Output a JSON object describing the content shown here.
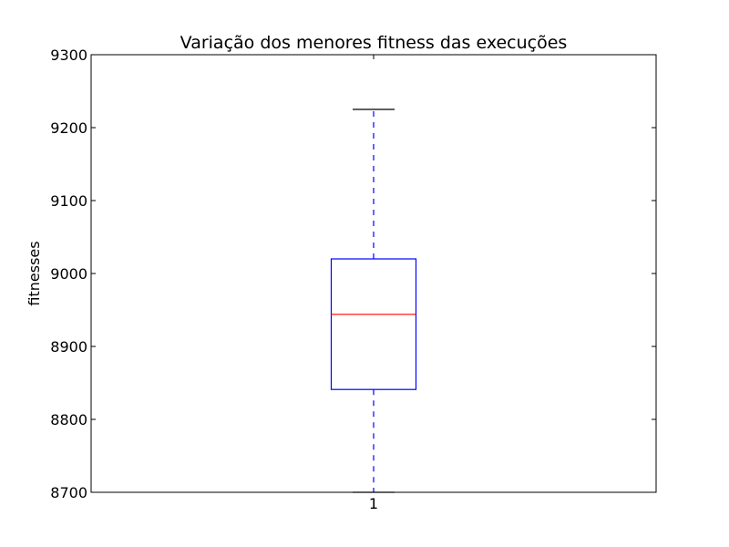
{
  "chart_data": {
    "type": "boxplot",
    "title": "Variação dos menores fitness das execuções",
    "xlabel": "",
    "ylabel": "fitnesses",
    "ylim": [
      8700,
      9300
    ],
    "yticks": [
      8700,
      8800,
      8900,
      9000,
      9100,
      9200,
      9300
    ],
    "categories": [
      "1"
    ],
    "boxes": [
      {
        "category": "1",
        "whisker_low": 8700,
        "q1": 8841,
        "median": 8944,
        "q3": 9020,
        "whisker_high": 9225
      }
    ],
    "grid": false,
    "colors": {
      "box": "#0000ff",
      "median": "#ff0000",
      "whisker": "#0000ff",
      "cap": "#000000",
      "frame": "#000000"
    }
  }
}
